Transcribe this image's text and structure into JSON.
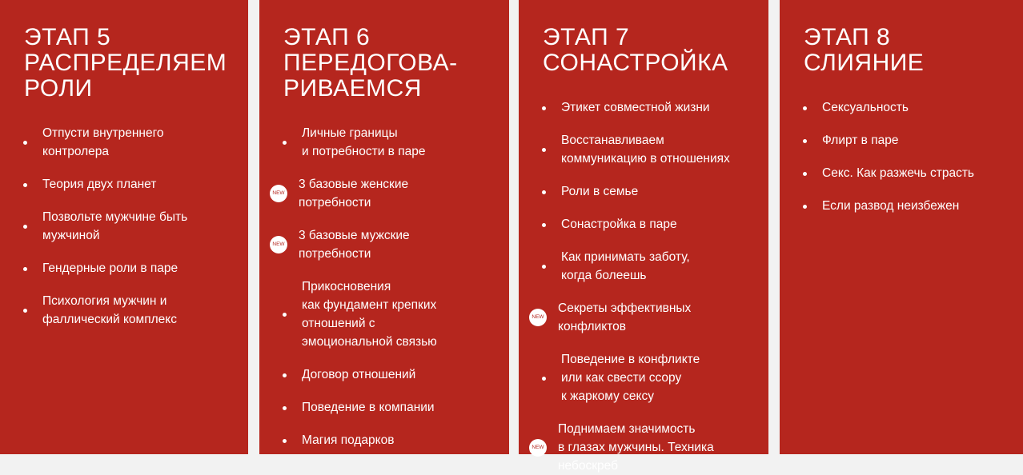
{
  "colors": {
    "panel": "#b5261e",
    "background": "#f2f2f2",
    "text": "#ffffff"
  },
  "badge_label": "NEW",
  "stages": [
    {
      "title": "ЭТАП 5\nРАСПРЕДЕЛЯЕМ\nРОЛИ",
      "items": [
        {
          "text": "Отпусти внутреннего\nконтролера",
          "new": false
        },
        {
          "text": "Теория двух планет",
          "new": false
        },
        {
          "text": "Позвольте мужчине быть\nмужчиной",
          "new": false
        },
        {
          "text": "Гендерные роли в паре",
          "new": false
        },
        {
          "text": "Психология мужчин и\nфаллический комплекс",
          "new": false
        }
      ]
    },
    {
      "title": "ЭТАП 6\nПЕРЕДОГОВА-\nРИВАЕМСЯ",
      "items": [
        {
          "text": "Личные границы\nи потребности в паре",
          "new": false
        },
        {
          "text": "3 базовые женские\nпотребности",
          "new": true
        },
        {
          "text": "3 базовые мужские\nпотребности",
          "new": true
        },
        {
          "text": "Прикосновения\nкак фундамент крепких\nотношений с\nэмоциональной связью",
          "new": false
        },
        {
          "text": "Договор отношений",
          "new": false
        },
        {
          "text": "Поведение в компании",
          "new": false
        },
        {
          "text": "Магия подарков",
          "new": false
        }
      ]
    },
    {
      "title": "ЭТАП 7\nСОНАСТРОЙКА",
      "items": [
        {
          "text": "Этикет совместной жизни",
          "new": false
        },
        {
          "text": "Восстанавливаем\nкоммуникацию в отношениях",
          "new": false
        },
        {
          "text": "Роли в семье",
          "new": false
        },
        {
          "text": "Сонастройка в паре",
          "new": false
        },
        {
          "text": "Как принимать заботу,\nкогда болеешь",
          "new": false
        },
        {
          "text": "Секреты эффективных\nконфликтов",
          "new": true
        },
        {
          "text": "Поведение в конфликте\nили как свести ссору\nк жаркому сексу",
          "new": false
        },
        {
          "text": "Поднимаем значимость\nв глазах мужчины. Техника\nнебоскреб",
          "new": true
        }
      ]
    },
    {
      "title": "ЭТАП 8\nСЛИЯНИЕ",
      "items": [
        {
          "text": "Сексуальность",
          "new": false
        },
        {
          "text": "Флирт в паре",
          "new": false
        },
        {
          "text": "Секс. Как разжечь страсть",
          "new": false
        },
        {
          "text": "Если развод неизбежен",
          "new": false
        }
      ]
    }
  ]
}
